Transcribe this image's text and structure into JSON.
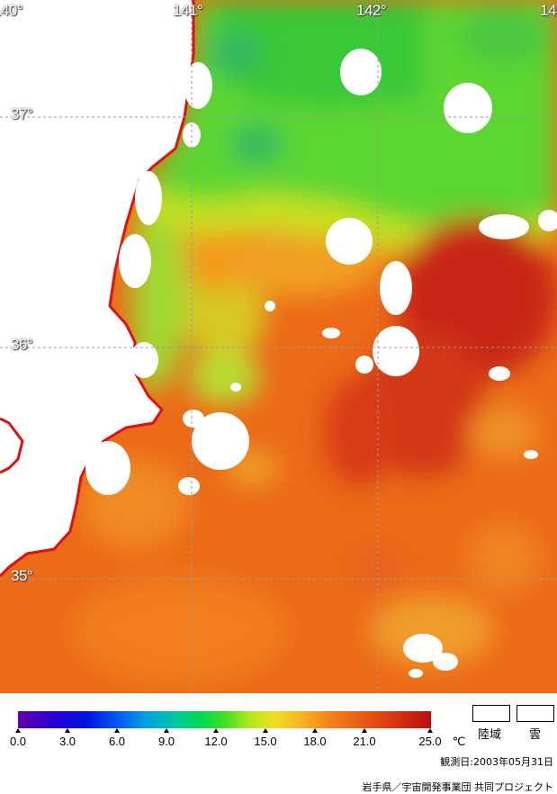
{
  "map": {
    "longitude_labels": [
      "140°",
      "141°",
      "142°",
      "14"
    ],
    "latitude_labels": [
      "37°",
      "36°",
      "35°"
    ],
    "colors": {
      "land": "#ffffff",
      "cloud": "#ffffff",
      "coastline": "#e01010",
      "grid": "#9a9a9a"
    }
  },
  "legend": {
    "scale_labels": [
      "0.0",
      "3.0",
      "6.0",
      "9.0",
      "12.0",
      "15.0",
      "18.0",
      "21.0",
      "25.0"
    ],
    "unit": "℃",
    "range_celsius": [
      0.0,
      25.0
    ],
    "land_label": "陸域",
    "cloud_label": "雲"
  },
  "observation_date": "観測日:2003年05月31日",
  "credit": "岩手県／宇宙開発事業団 共同プロジェクト"
}
